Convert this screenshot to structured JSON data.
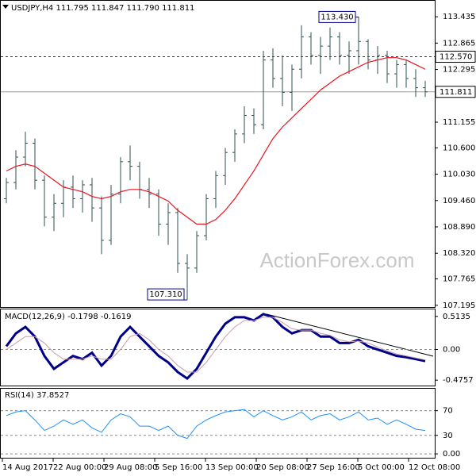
{
  "chart_data": [
    {
      "type": "ohlc",
      "title": "USDJPY,H4  111.795 111.847 111.790 111.811",
      "watermark": "ActionForex.com",
      "color": "#2f4f4f",
      "ohlc": [
        [
          109.5,
          109.95,
          109.4,
          109.85
        ],
        [
          109.85,
          110.55,
          109.7,
          110.4
        ],
        [
          110.4,
          110.95,
          110.2,
          110.7
        ],
        [
          110.7,
          110.8,
          109.7,
          109.9
        ],
        [
          109.9,
          110.0,
          108.9,
          109.1
        ],
        [
          109.1,
          109.6,
          108.8,
          109.4
        ],
        [
          109.4,
          109.9,
          109.1,
          109.75
        ],
        [
          109.75,
          110.0,
          109.3,
          109.5
        ],
        [
          109.5,
          109.9,
          109.2,
          109.8
        ],
        [
          109.8,
          109.95,
          109.0,
          109.3
        ],
        [
          109.3,
          109.55,
          108.3,
          108.6
        ],
        [
          108.6,
          109.8,
          108.5,
          109.6
        ],
        [
          109.6,
          110.4,
          109.4,
          110.3
        ],
        [
          110.3,
          110.65,
          109.9,
          110.2
        ],
        [
          110.2,
          110.3,
          109.5,
          109.7
        ],
        [
          109.7,
          109.95,
          109.3,
          109.6
        ],
        [
          109.6,
          109.7,
          108.7,
          108.95
        ],
        [
          108.95,
          109.4,
          108.5,
          109.2
        ],
        [
          109.2,
          109.3,
          107.9,
          108.1
        ],
        [
          108.1,
          108.3,
          107.31,
          108.0
        ],
        [
          108.0,
          108.8,
          107.9,
          108.7
        ],
        [
          108.7,
          109.6,
          108.6,
          109.5
        ],
        [
          109.5,
          110.1,
          109.3,
          110.0
        ],
        [
          110.0,
          110.6,
          109.8,
          110.5
        ],
        [
          110.5,
          111.0,
          110.3,
          110.9
        ],
        [
          110.9,
          111.5,
          110.7,
          111.3
        ],
        [
          111.3,
          111.45,
          110.9,
          111.1
        ],
        [
          111.1,
          112.7,
          111.0,
          112.5
        ],
        [
          112.5,
          112.75,
          111.9,
          112.1
        ],
        [
          112.1,
          112.6,
          111.5,
          111.8
        ],
        [
          111.8,
          112.4,
          111.4,
          112.3
        ],
        [
          112.3,
          113.25,
          112.1,
          113.0
        ],
        [
          113.0,
          113.1,
          112.4,
          112.6
        ],
        [
          112.6,
          113.0,
          112.2,
          112.8
        ],
        [
          112.8,
          113.2,
          112.5,
          113.0
        ],
        [
          113.0,
          113.1,
          112.4,
          112.6
        ],
        [
          112.6,
          112.9,
          112.2,
          112.7
        ],
        [
          112.7,
          113.43,
          112.4,
          112.9
        ],
        [
          112.9,
          112.95,
          112.3,
          112.5
        ],
        [
          112.5,
          112.8,
          112.2,
          112.6
        ],
        [
          112.6,
          112.7,
          112.0,
          112.2
        ],
        [
          112.2,
          112.5,
          111.9,
          112.4
        ],
        [
          112.4,
          112.5,
          111.9,
          112.1
        ],
        [
          112.1,
          112.3,
          111.7,
          111.9
        ],
        [
          111.9,
          112.05,
          111.7,
          111.811
        ]
      ],
      "ma": {
        "color": "#e8141e",
        "values": [
          110.1,
          110.2,
          110.25,
          110.2,
          110.05,
          109.9,
          109.75,
          109.7,
          109.65,
          109.55,
          109.5,
          109.55,
          109.65,
          109.7,
          109.7,
          109.65,
          109.55,
          109.45,
          109.25,
          109.1,
          108.95,
          108.95,
          109.05,
          109.25,
          109.5,
          109.8,
          110.1,
          110.45,
          110.8,
          111.05,
          111.25,
          111.45,
          111.65,
          111.85,
          112.0,
          112.15,
          112.25,
          112.35,
          112.45,
          112.5,
          112.55,
          112.55,
          112.5,
          112.4,
          112.3
        ]
      },
      "ylim": [
        107.14,
        113.78
      ],
      "yticks": [
        113.435,
        112.865,
        112.295,
        111.155,
        {
          "value": 110.6,
          "label": "110.600"
        },
        {
          "value": 110.03,
          "label": "110.030"
        },
        {
          "value": 109.46,
          "label": "109.460"
        },
        {
          "value": 108.89,
          "label": "108.890"
        },
        {
          "value": 108.32,
          "label": "108.320"
        },
        107.765,
        107.195
      ],
      "hlines": [
        {
          "value": 112.57,
          "label": "112.570",
          "style": "dashed"
        },
        {
          "value": 111.811,
          "style": "solid"
        }
      ],
      "annotations": [
        {
          "value": 113.43,
          "label": "113.430",
          "at": "high"
        },
        {
          "value": 107.31,
          "label": "107.310",
          "at": "low"
        }
      ]
    },
    {
      "type": "line",
      "title": "MACD(12,26,9) -0.1798 -0.1619",
      "zero_line": true,
      "series": [
        {
          "color": "#00008b",
          "width": 3,
          "values": [
            0.05,
            0.25,
            0.35,
            0.2,
            -0.1,
            -0.3,
            -0.2,
            -0.1,
            -0.15,
            -0.05,
            -0.25,
            -0.1,
            0.2,
            0.35,
            0.2,
            0.05,
            -0.1,
            -0.2,
            -0.35,
            -0.45,
            -0.3,
            -0.05,
            0.2,
            0.4,
            0.5,
            0.5,
            0.45,
            0.55,
            0.5,
            0.35,
            0.25,
            0.3,
            0.3,
            0.2,
            0.2,
            0.1,
            0.1,
            0.15,
            0.05,
            0.0,
            -0.05,
            -0.1,
            -0.12,
            -0.15,
            -0.1798
          ]
        },
        {
          "color": "#c8a0a8",
          "width": 1,
          "values": [
            0.0,
            0.1,
            0.2,
            0.2,
            0.1,
            -0.05,
            -0.15,
            -0.15,
            -0.15,
            -0.1,
            -0.15,
            -0.15,
            0.0,
            0.2,
            0.25,
            0.15,
            0.0,
            -0.1,
            -0.25,
            -0.35,
            -0.35,
            -0.2,
            0.0,
            0.2,
            0.35,
            0.45,
            0.45,
            0.5,
            0.5,
            0.42,
            0.32,
            0.3,
            0.3,
            0.25,
            0.22,
            0.15,
            0.12,
            0.13,
            0.1,
            0.04,
            -0.02,
            -0.07,
            -0.1,
            -0.13,
            -0.1619
          ]
        }
      ],
      "ylim": [
        -0.572,
        0.622
      ],
      "yticks": [
        0.5135,
        {
          "value": 0,
          "label": "0.00"
        },
        -0.4757
      ]
    },
    {
      "type": "line",
      "title": "RSI(14) 37.8527",
      "tick_lines": true,
      "series": [
        {
          "color": "#1e90ff",
          "width": 1,
          "values": [
            62,
            68,
            70,
            55,
            38,
            45,
            55,
            48,
            55,
            42,
            35,
            55,
            65,
            60,
            45,
            45,
            38,
            45,
            30,
            25,
            45,
            55,
            62,
            68,
            70,
            72,
            60,
            70,
            62,
            55,
            60,
            68,
            55,
            62,
            65,
            55,
            60,
            68,
            55,
            58,
            48,
            55,
            48,
            40,
            37.85
          ]
        }
      ],
      "ylim": [
        -7.6,
        105.6
      ],
      "yticks": [
        70,
        30,
        {
          "value": 0,
          "label": "0.00"
        }
      ],
      "xticklabels": [
        "14 Aug 2017",
        "22 Aug 00:00",
        "29 Aug 08:00",
        "5 Sep 16:00",
        "13 Sep 00:00",
        "20 Sep 08:00",
        "27 Sep 16:00",
        "5 Oct 00:00",
        "12 Oct 08:00"
      ]
    }
  ]
}
